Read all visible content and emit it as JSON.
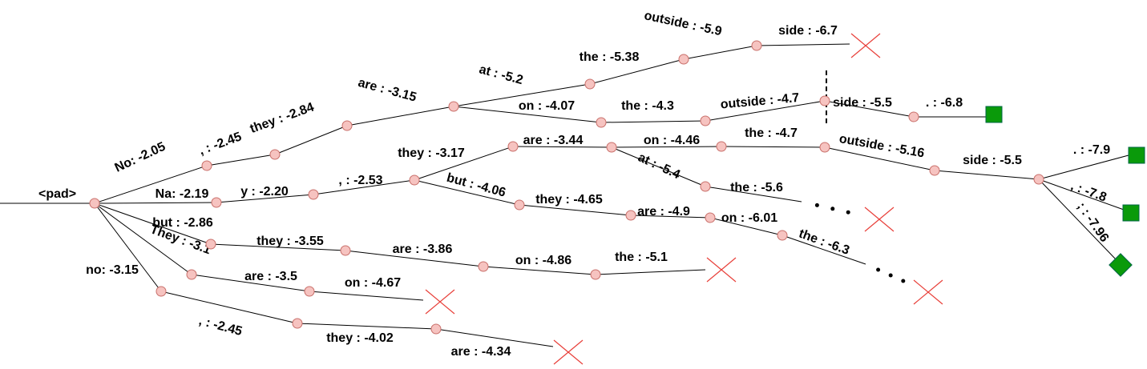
{
  "root": "<pad>",
  "labels": [
    "No: -2.05",
    ", : -2.45",
    "they : -2.84",
    "are : -3.15",
    "at : -5.2",
    "the : -5.38",
    "outside : -5.9",
    "side : -6.7",
    "on : -4.07",
    "the : -4.3",
    "outside : -4.7",
    "side : -5.5",
    ". : -6.8",
    "Na: -2.19",
    "y : -2.20",
    ", : -2.53",
    "they : -3.17",
    "are : -3.44",
    "on : -4.46",
    "the : -4.7",
    "outside : -5.16",
    "side : -5.5",
    ". : -7.9",
    ", : -7.8",
    "; : -7.96",
    "at : -5.4",
    "the : -5.6",
    "but : -4.06",
    "they : -4.65",
    "are : -4.9",
    "on : -6.01",
    "the : -6.3",
    "but : -2.86",
    "they : -3.55",
    "are : -3.86",
    "on : -4.86",
    "the : -5.1",
    "They : -3.1",
    "are : -3.5",
    "on : -4.67",
    "no: -3.15",
    ", : -2.45",
    "they : -4.02",
    "are : -4.34"
  ]
}
